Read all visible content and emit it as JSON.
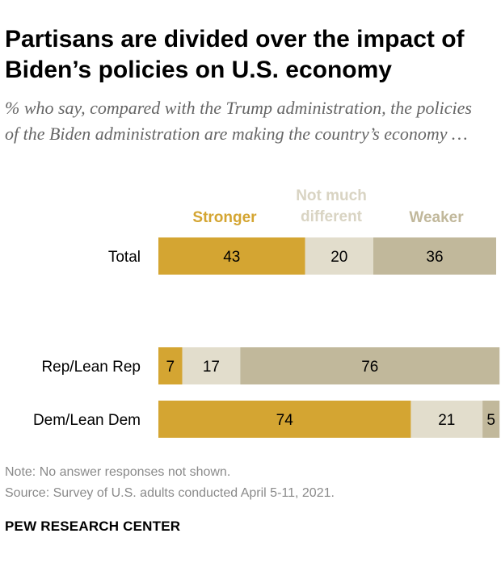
{
  "title_line1": "Partisans are divided over the impact of",
  "title_line2": "Biden’s policies on U.S. economy",
  "subtitle": "% who say, compared with the Trump administration, the policies of the Biden administration are making the country’s economy …",
  "chart_data": {
    "type": "bar",
    "orientation": "horizontal-stacked",
    "categories": [
      "Total",
      "Rep/Lean Rep",
      "Dem/Lean Dem"
    ],
    "series": [
      {
        "name": "Stronger",
        "legend_lines": [
          "Stronger"
        ],
        "color": "#d4a532",
        "values": [
          43,
          7,
          74
        ]
      },
      {
        "name": "Not much different",
        "legend_lines": [
          "Not much",
          "different"
        ],
        "color": "#e2ddcc",
        "values": [
          20,
          17,
          21
        ]
      },
      {
        "name": "Weaker",
        "legend_lines": [
          "Weaker"
        ],
        "color": "#c1b89b",
        "values": [
          36,
          76,
          5
        ]
      }
    ],
    "legend_position": "top",
    "value_labels": true,
    "grid": false
  },
  "note": "Note: No answer responses not shown.",
  "source": "Source: Survey of U.S. adults conducted April 5-11, 2021.",
  "brand": "PEW RESEARCH CENTER"
}
